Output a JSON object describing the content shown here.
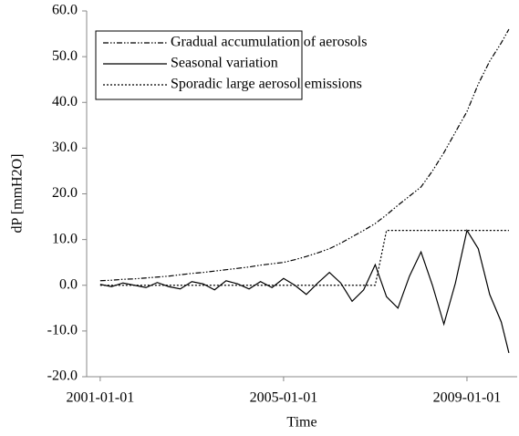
{
  "chart_data": {
    "type": "line",
    "xlabel": "Time",
    "ylabel": "dP [mmH2O]",
    "x": [
      "2001-01-01",
      "2001-04-01",
      "2001-07-01",
      "2001-10-01",
      "2002-01-01",
      "2002-04-01",
      "2002-07-01",
      "2002-10-01",
      "2003-01-01",
      "2003-04-01",
      "2003-07-01",
      "2003-10-01",
      "2004-01-01",
      "2004-04-01",
      "2004-07-01",
      "2004-10-01",
      "2005-01-01",
      "2005-04-01",
      "2005-07-01",
      "2005-10-01",
      "2006-01-01",
      "2006-04-01",
      "2006-07-01",
      "2006-10-01",
      "2007-01-01",
      "2007-04-01",
      "2007-07-01",
      "2007-10-01",
      "2008-01-01",
      "2008-04-01",
      "2008-07-01",
      "2008-10-01",
      "2009-01-01",
      "2009-04-01",
      "2009-07-01",
      "2009-10-01",
      "2009-12-01"
    ],
    "series": [
      {
        "name": "Gradual accumulation of aerosols",
        "color": "#000000",
        "dash": "dashdotdot",
        "values": [
          1.0,
          1.1,
          1.3,
          1.4,
          1.6,
          1.8,
          2.0,
          2.3,
          2.6,
          2.8,
          3.1,
          3.4,
          3.7,
          4.0,
          4.4,
          4.7,
          5.0,
          5.6,
          6.3,
          7.1,
          8.0,
          9.2,
          10.6,
          12.0,
          13.5,
          15.4,
          17.5,
          19.5,
          21.5,
          25.0,
          29.0,
          33.5,
          38.0,
          44.0,
          49.0,
          53.0,
          56.0
        ]
      },
      {
        "name": "Seasonal variation",
        "color": "#000000",
        "dash": "solid",
        "values": [
          0.2,
          -0.3,
          0.5,
          0.0,
          -0.5,
          0.6,
          -0.3,
          -0.8,
          0.8,
          0.3,
          -1.0,
          1.0,
          0.3,
          -0.8,
          0.8,
          -0.5,
          1.5,
          0.0,
          -2.0,
          0.5,
          2.8,
          0.5,
          -3.5,
          -1.0,
          4.5,
          -2.5,
          -5.0,
          2.0,
          7.3,
          0.0,
          -8.5,
          0.5,
          12.0,
          8.0,
          -2.0,
          -8.0,
          -14.8
        ]
      },
      {
        "name": "Sporadic large aerosol emissions",
        "color": "#000000",
        "dash": "dotted",
        "values": [
          0,
          0,
          0,
          0,
          0,
          0,
          0,
          0,
          0,
          0,
          0,
          0,
          0,
          0,
          0,
          0,
          0,
          0,
          0,
          0,
          0,
          0,
          0,
          0,
          0,
          12,
          12,
          12,
          12,
          12,
          12,
          12,
          12,
          12,
          12,
          12,
          12
        ]
      }
    ],
    "xlim": [
      "2000-09-15",
      "2010-02-05"
    ],
    "xticks": [
      "2001-01-01",
      "2005-01-01",
      "2009-01-01"
    ],
    "ylim": [
      -20,
      60
    ],
    "yticks": [
      {
        "value": -20,
        "label": "-20.0"
      },
      {
        "value": -10,
        "label": "-10.0"
      },
      {
        "value": 0,
        "label": "0.0"
      },
      {
        "value": 10,
        "label": "10.0"
      },
      {
        "value": 20,
        "label": "20.0"
      },
      {
        "value": 30,
        "label": "30.0"
      },
      {
        "value": 40,
        "label": "40.0"
      },
      {
        "value": 50,
        "label": "50.0"
      },
      {
        "value": 60,
        "label": "60.0"
      }
    ],
    "legend": "upper left",
    "grid": false
  }
}
